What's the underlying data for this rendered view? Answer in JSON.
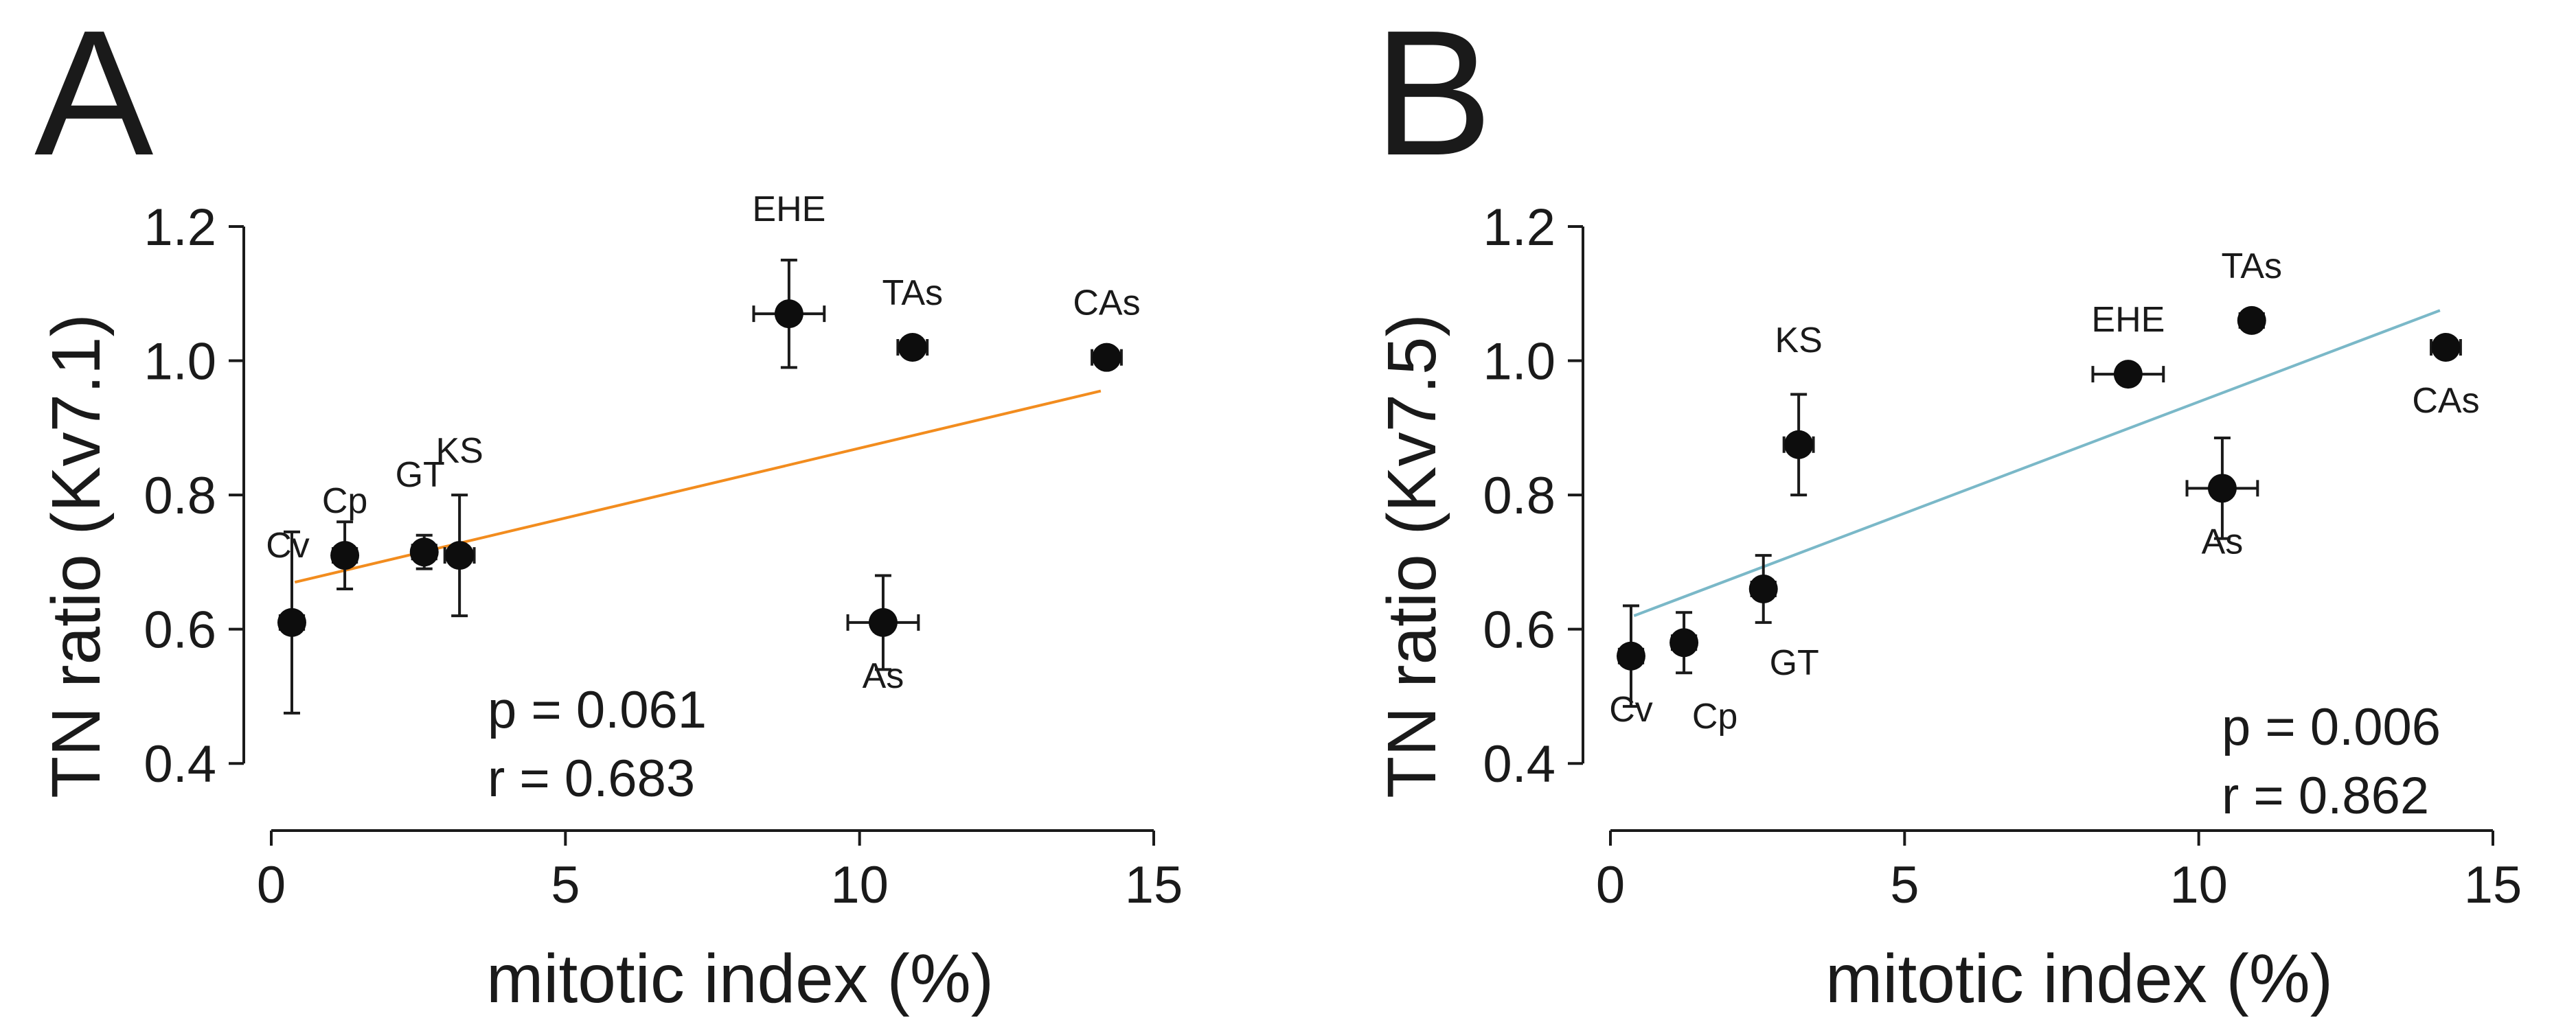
{
  "chart_data": [
    {
      "type": "scatter",
      "panel_letter": "A",
      "xlabel": "mitotic index (%)",
      "ylabel": "TN ratio (Kv7.1)",
      "xlim": [
        0,
        15
      ],
      "ylim": [
        0.3,
        1.2
      ],
      "xticks": [
        "0",
        "5",
        "10",
        "15"
      ],
      "xtick_values": [
        0,
        5,
        10,
        15
      ],
      "yticks": [
        "0.4",
        "0.6",
        "0.8",
        "1.0",
        "1.2"
      ],
      "ytick_values": [
        0.4,
        0.6,
        0.8,
        1.0,
        1.2
      ],
      "points": [
        {
          "label": "Cv",
          "x": 0.35,
          "y": 0.61,
          "xerr": 0.2,
          "yerr": 0.135,
          "label_pos": "above-left"
        },
        {
          "label": "Cp",
          "x": 1.25,
          "y": 0.71,
          "xerr": 0.2,
          "yerr": 0.05,
          "label_pos": "above"
        },
        {
          "label": "GT",
          "x": 2.6,
          "y": 0.715,
          "xerr": 0.2,
          "yerr": 0.025,
          "label_pos": "above-left"
        },
        {
          "label": "KS",
          "x": 3.2,
          "y": 0.71,
          "xerr": 0.25,
          "yerr": 0.09,
          "label_pos": "above-far"
        },
        {
          "label": "EHE",
          "x": 8.8,
          "y": 1.07,
          "xerr": 0.6,
          "yerr": 0.08,
          "label_pos": "above-far"
        },
        {
          "label": "TAs",
          "x": 10.9,
          "y": 1.02,
          "xerr": 0.25,
          "yerr": 0.0,
          "label_pos": "above"
        },
        {
          "label": "CAs",
          "x": 14.2,
          "y": 1.005,
          "xerr": 0.25,
          "yerr": 0.0,
          "label_pos": "above"
        },
        {
          "label": "As",
          "x": 10.4,
          "y": 0.61,
          "xerr": 0.6,
          "yerr": 0.07,
          "label_pos": "below"
        }
      ],
      "fit": {
        "x": [
          0.4,
          14.1
        ],
        "y": [
          0.67,
          0.955
        ],
        "color": "#f28c1e"
      },
      "stats": [
        "p = 0.061",
        "r  = 0.683"
      ]
    },
    {
      "type": "scatter",
      "panel_letter": "B",
      "xlabel": "mitotic index (%)",
      "ylabel": "TN ratio (Kv7.5)",
      "xlim": [
        0,
        15
      ],
      "ylim": [
        0.3,
        1.2
      ],
      "xticks": [
        "0",
        "5",
        "10",
        "15"
      ],
      "xtick_values": [
        0,
        5,
        10,
        15
      ],
      "yticks": [
        "0.4",
        "0.6",
        "0.8",
        "1.0",
        "1.2"
      ],
      "ytick_values": [
        0.4,
        0.6,
        0.8,
        1.0,
        1.2
      ],
      "points": [
        {
          "label": "Cv",
          "x": 0.35,
          "y": 0.56,
          "xerr": 0.2,
          "yerr": 0.075,
          "label_pos": "below"
        },
        {
          "label": "Cp",
          "x": 1.25,
          "y": 0.58,
          "xerr": 0.2,
          "yerr": 0.045,
          "label_pos": "below-far"
        },
        {
          "label": "GT",
          "x": 2.6,
          "y": 0.66,
          "xerr": 0.2,
          "yerr": 0.05,
          "label_pos": "below-far"
        },
        {
          "label": "KS",
          "x": 3.2,
          "y": 0.875,
          "xerr": 0.25,
          "yerr": 0.075,
          "label_pos": "above-far"
        },
        {
          "label": "EHE",
          "x": 8.8,
          "y": 0.98,
          "xerr": 0.6,
          "yerr": 0.0,
          "label_pos": "above"
        },
        {
          "label": "TAs",
          "x": 10.9,
          "y": 1.06,
          "xerr": 0.2,
          "yerr": 0.0,
          "label_pos": "above"
        },
        {
          "label": "CAs",
          "x": 14.2,
          "y": 1.02,
          "xerr": 0.25,
          "yerr": 0.0,
          "label_pos": "below"
        },
        {
          "label": "As",
          "x": 10.4,
          "y": 0.81,
          "xerr": 0.6,
          "yerr": 0.075,
          "label_pos": "below"
        }
      ],
      "fit": {
        "x": [
          0.4,
          14.1
        ],
        "y": [
          0.62,
          1.075
        ],
        "color": "#7ab8c8"
      },
      "stats": [
        "p = 0.006",
        "r  = 0.862"
      ]
    }
  ]
}
